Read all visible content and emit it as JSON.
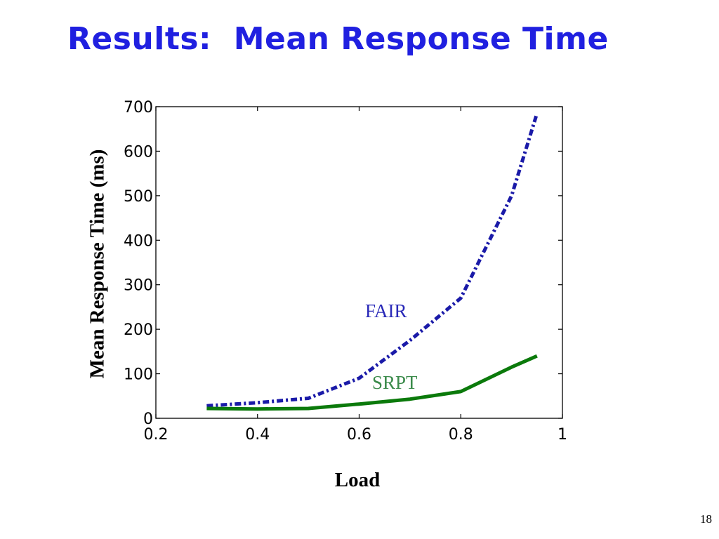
{
  "slide": {
    "title": "Results:  Mean Response Time",
    "page_number": "18"
  },
  "colors": {
    "title": "#2020e0",
    "fair": "#1a1aa8",
    "srpt": "#0b7a0b",
    "fair_label": "#2a2ab8",
    "srpt_label": "#3a8a4a"
  },
  "chart_data": {
    "type": "line",
    "xlabel": "Load",
    "ylabel": "Mean Response Time (ms)",
    "xlim": [
      0.2,
      1
    ],
    "ylim": [
      0,
      700
    ],
    "xticks": [
      "0.2",
      "0.4",
      "0.6",
      "0.8",
      "1"
    ],
    "yticks": [
      "0",
      "100",
      "200",
      "300",
      "400",
      "500",
      "600",
      "700"
    ],
    "grid": false,
    "series": [
      {
        "name": "FAIR",
        "style": "dash-dot",
        "x": [
          0.3,
          0.4,
          0.5,
          0.6,
          0.7,
          0.8,
          0.9,
          0.95
        ],
        "y": [
          28,
          35,
          45,
          90,
          175,
          270,
          500,
          685
        ]
      },
      {
        "name": "SRPT",
        "style": "solid",
        "x": [
          0.3,
          0.4,
          0.5,
          0.6,
          0.7,
          0.8,
          0.9,
          0.95
        ],
        "y": [
          22,
          21,
          22,
          32,
          43,
          60,
          115,
          140
        ]
      }
    ]
  }
}
